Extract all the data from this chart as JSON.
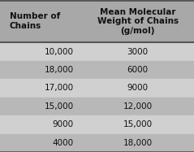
{
  "col1_header": "Number of\nChains",
  "col2_header": "Mean Molecular\nWeight of Chains\n(g/mol)",
  "rows": [
    [
      "10,000",
      "3000"
    ],
    [
      "18,000",
      "6000"
    ],
    [
      "17,000",
      "9000"
    ],
    [
      "15,000",
      "12,000"
    ],
    [
      "9000",
      "15,000"
    ],
    [
      "4000",
      "18,000"
    ]
  ],
  "row_colors_light": "#d0d0d0",
  "row_colors_dark": "#b8b8b8",
  "outer_bg": "#a8a8a8",
  "border_color": "#555555",
  "text_color": "#111111",
  "header_fontsize": 7.5,
  "cell_fontsize": 7.5
}
